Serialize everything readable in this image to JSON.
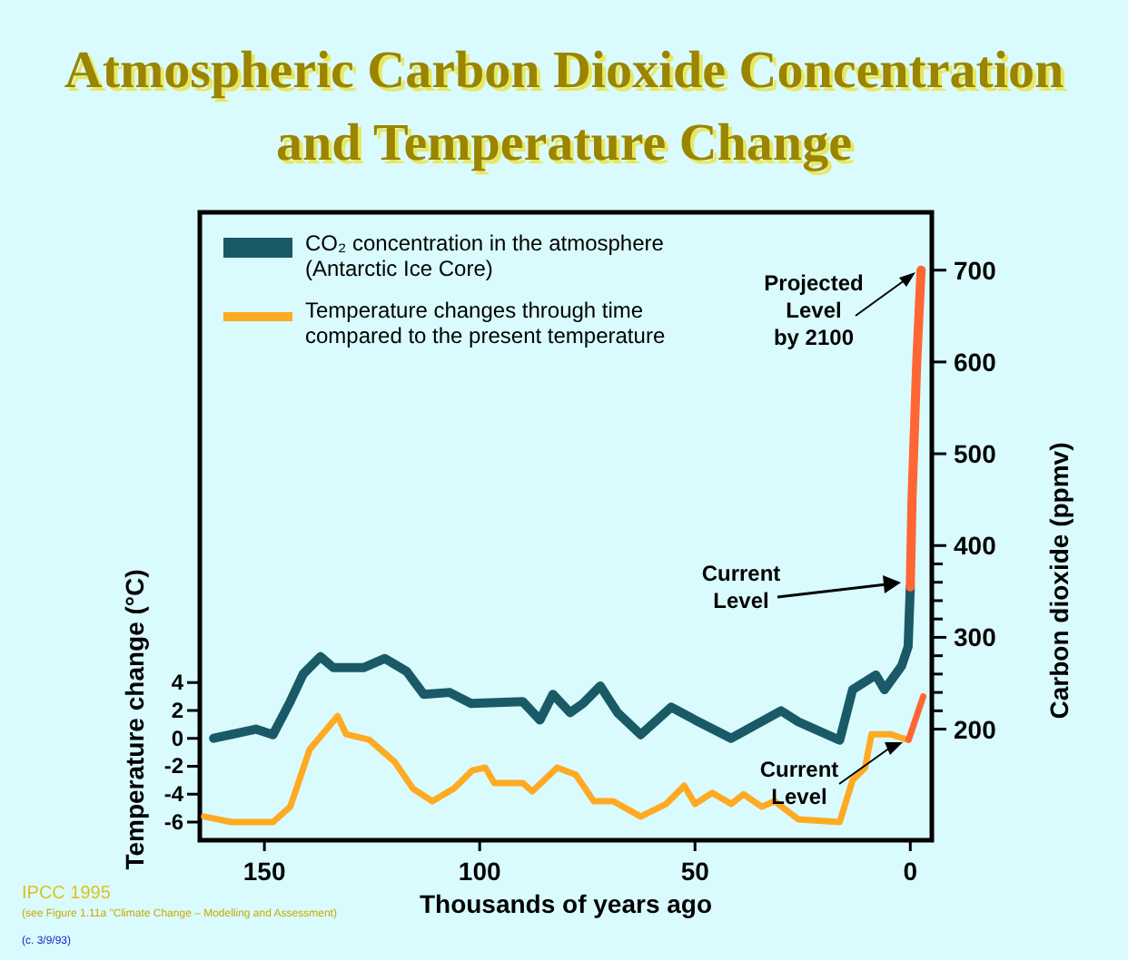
{
  "chart_data": {
    "type": "line",
    "title": "Atmospheric Carbon Dioxide Concentration\nand Temperature Change",
    "xlabel": "Thousands of years ago",
    "ylabel": "Temperature change (°C)",
    "y2label": "Carbon dioxide (ppmv)",
    "xlim": [
      165,
      -5
    ],
    "xticks": [
      150,
      100,
      50,
      0
    ],
    "ylim": [
      -7.3,
      37.7
    ],
    "yticks": [
      4,
      2,
      0,
      -2,
      -4,
      -6
    ],
    "y2lim": [
      79,
      763
    ],
    "y2ticks": [
      200,
      {
        "value": 220,
        "label": null
      },
      {
        "value": 240,
        "label": null
      },
      {
        "value": 260,
        "label": null
      },
      {
        "value": 280,
        "label": null
      },
      300,
      {
        "value": 320,
        "label": null
      },
      {
        "value": 340,
        "label": null
      },
      {
        "value": 360,
        "label": null
      },
      {
        "value": 380,
        "label": null
      },
      400,
      500,
      600,
      700
    ],
    "legend": "top left",
    "grid": false,
    "line_style": "solid",
    "marker": "none",
    "series": [
      {
        "name": "CO₂ concentration in the atmosphere\n(Antarctic Ice Core)",
        "color": "#1a5a66",
        "axis": "y2",
        "x": [
          161.8,
          152,
          148,
          144,
          141,
          137,
          134,
          127,
          122,
          117,
          113,
          107,
          102,
          90,
          86,
          83,
          79,
          76,
          72,
          68,
          62.6,
          55.5,
          50,
          41.6,
          30,
          26,
          16.4,
          13.4,
          8,
          6,
          2,
          0.5,
          0
        ],
        "values": [
          190,
          200,
          194,
          230,
          260,
          279,
          267,
          267,
          277,
          263,
          238,
          240,
          228,
          230,
          210,
          238,
          218,
          228,
          247,
          218,
          194,
          224,
          210,
          190,
          220,
          208,
          188,
          243,
          259,
          243,
          269,
          290,
          355
        ]
      },
      {
        "color": "#ff6633",
        "axis": "y2",
        "x": [
          0,
          -0.4,
          -1.5,
          -2.5
        ],
        "values": [
          355,
          450,
          600,
          700
        ]
      },
      {
        "name": "Temperature changes through time\ncompared to the present temperature",
        "color": "#ffaa22",
        "axis": "y",
        "x": [
          164,
          157.6,
          148,
          144,
          139.5,
          133,
          131,
          125.6,
          119.7,
          115.5,
          111,
          106,
          101.7,
          98.7,
          96.6,
          90,
          87.8,
          82,
          77.7,
          73.5,
          69,
          62.6,
          56.7,
          52.5,
          50,
          46,
          41.6,
          38.7,
          34.5,
          31.5,
          26,
          16.4,
          13.4,
          10.5,
          9,
          4.6,
          1.7,
          0.4
        ],
        "values": [
          -5.6,
          -6,
          -6,
          -4.9,
          -0.8,
          1.6,
          0.3,
          -0.1,
          -1.7,
          -3.6,
          -4.5,
          -3.6,
          -2.3,
          -2.1,
          -3.2,
          -3.2,
          -3.8,
          -2.1,
          -2.6,
          -4.5,
          -4.5,
          -5.6,
          -4.7,
          -3.4,
          -4.7,
          -3.9,
          -4.7,
          -4,
          -4.9,
          -4.5,
          -5.8,
          -6,
          -3,
          -2.1,
          0.3,
          0.3,
          0,
          -0.1
        ]
      },
      {
        "color": "#ff6633",
        "axis": "y",
        "x": [
          0.4,
          -3
        ],
        "values": [
          -0.1,
          3
        ]
      }
    ],
    "annotations": [
      "Projected\nLevel\nby 2100",
      "Current\nLevel",
      "Current\nLevel",
      "IPCC 1995",
      "(see Figure 1.11a \"Climate Change – Modelling and Assessment)",
      "(c. 3/9/93)"
    ]
  }
}
